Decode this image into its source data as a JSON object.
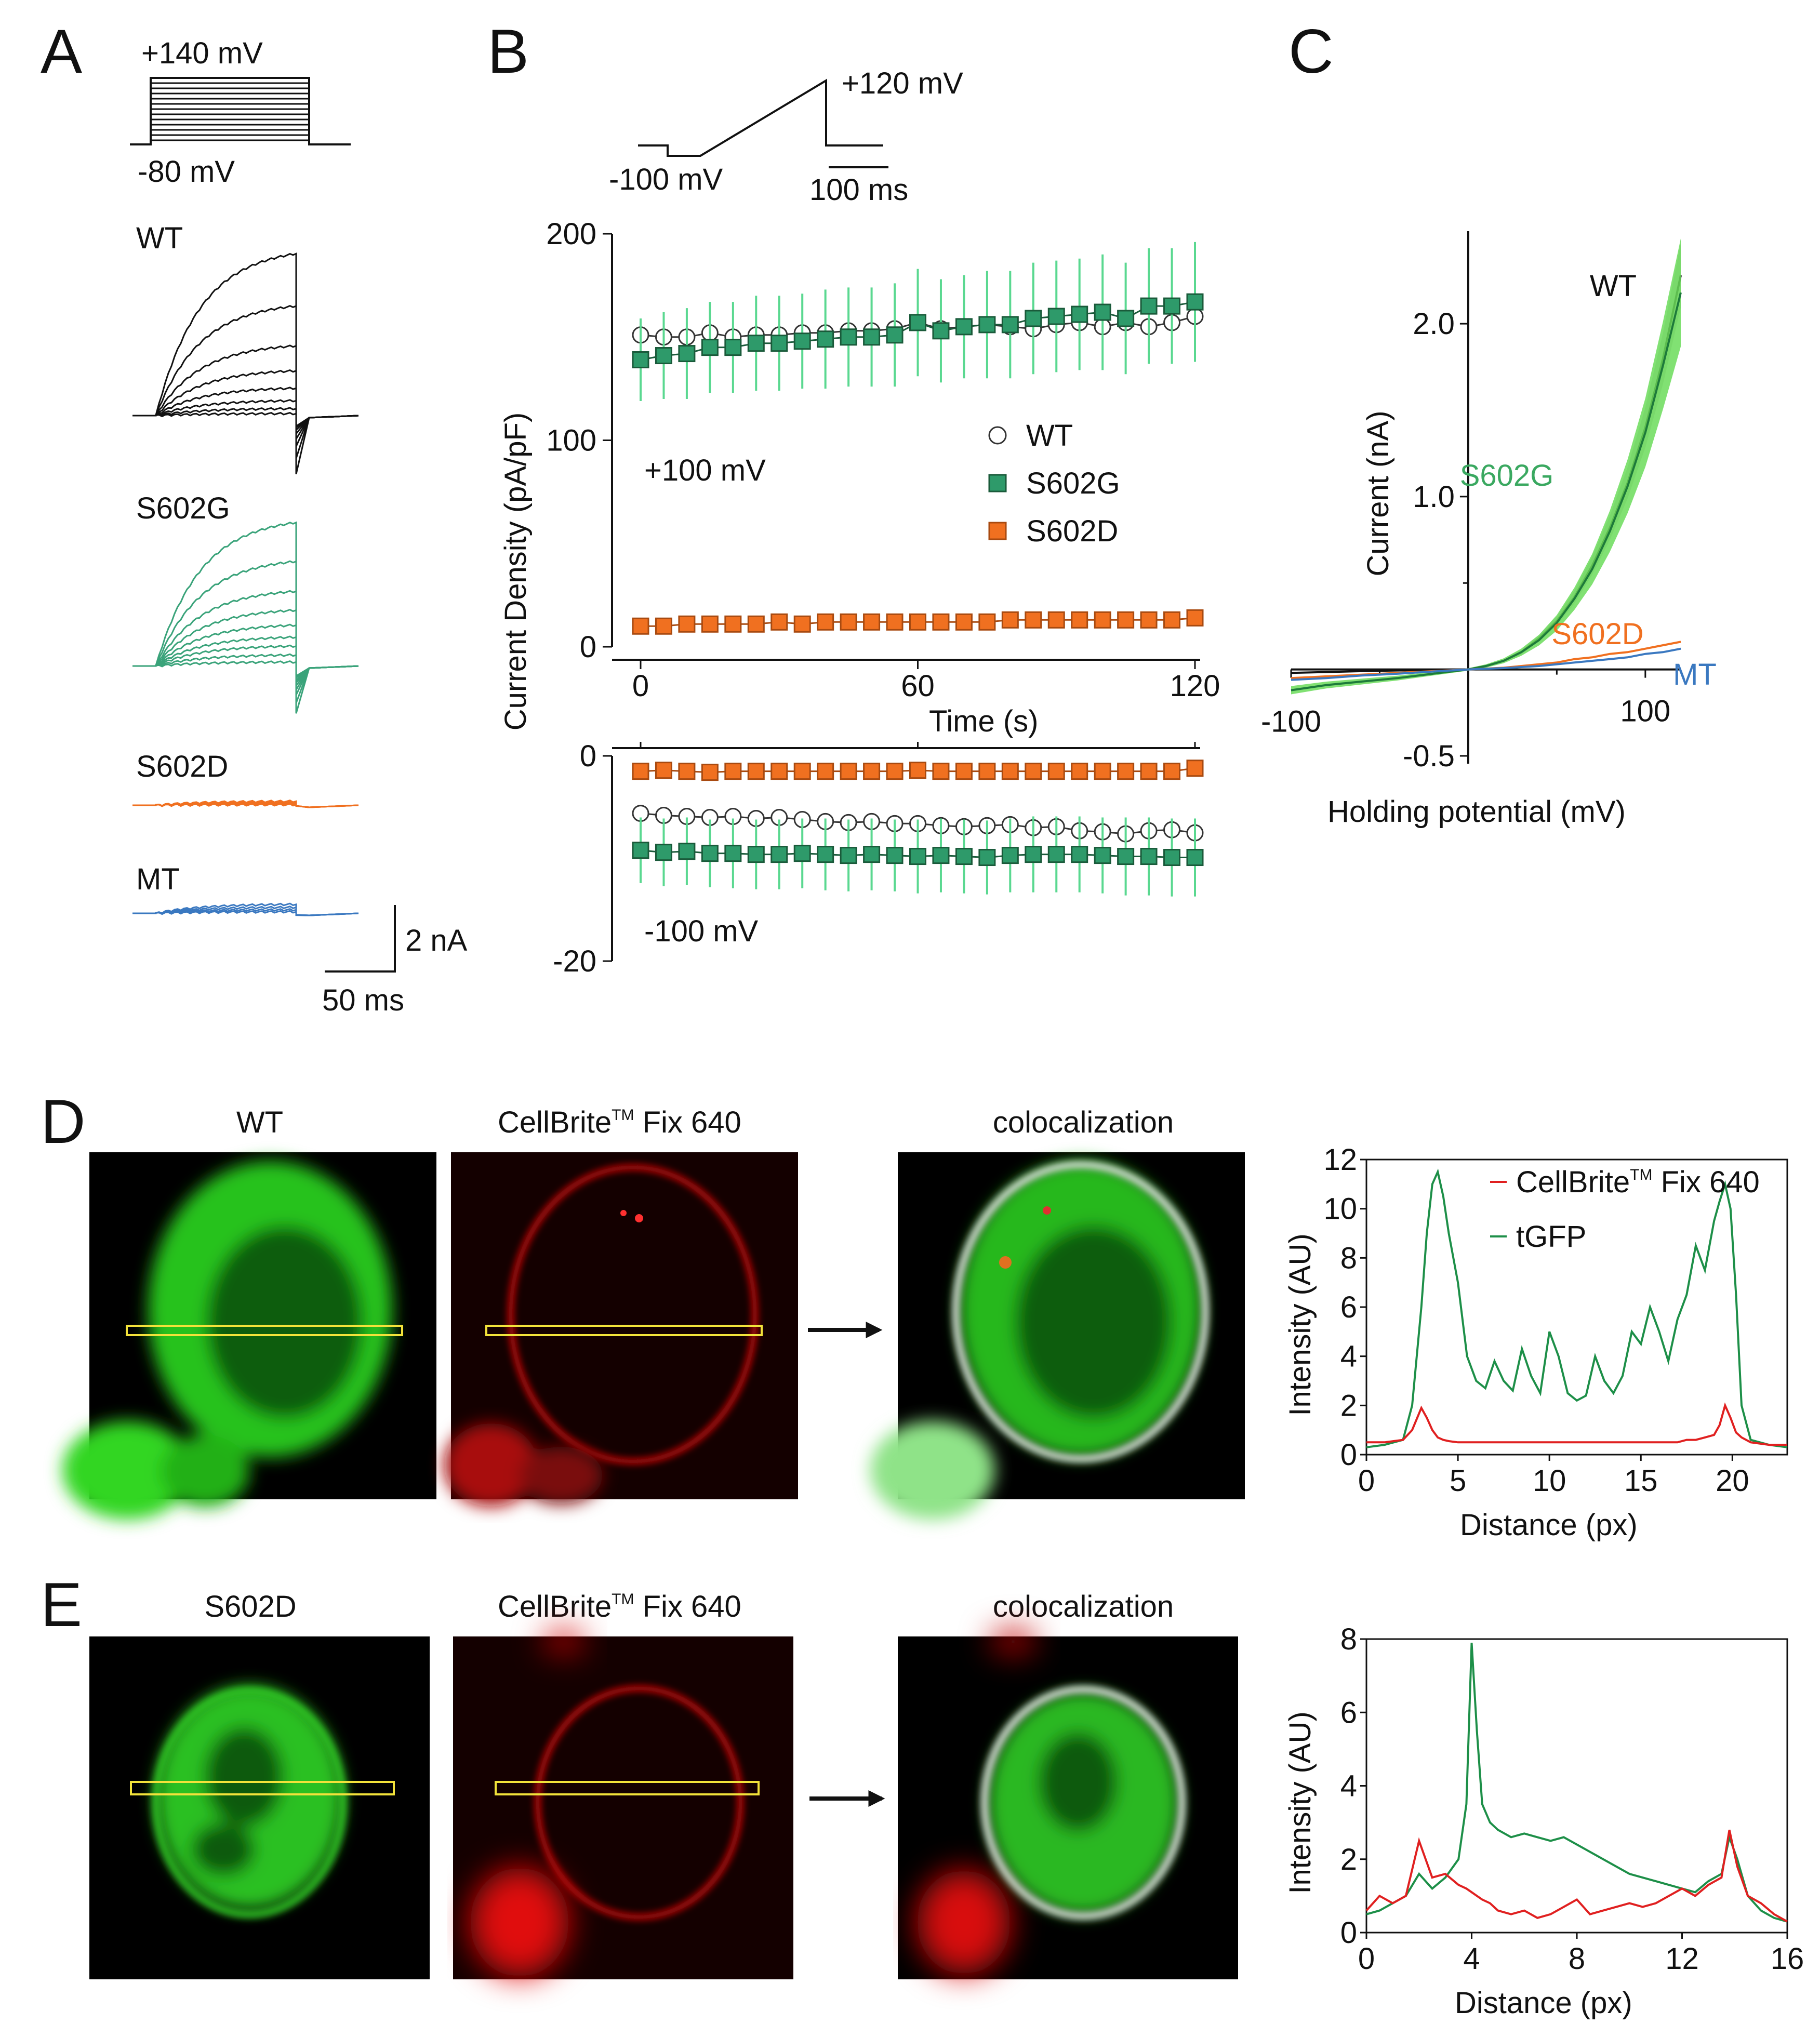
{
  "colors": {
    "WT": "#111111",
    "S602G": "#2e9a6a",
    "S602G_trace": "#3aa37a",
    "S602G_band": "#6bdc5a",
    "S602D": "#f07020",
    "MT": "#3a78c0",
    "red": "#e02020",
    "tgfp": "#1d8f48",
    "roi": "#f2e23a"
  },
  "panel_letters": [
    "A",
    "B",
    "C",
    "D",
    "E"
  ],
  "panelA": {
    "protocol_top": "+140 mV",
    "protocol_bottom": "-80 mV",
    "trace_labels": [
      "WT",
      "S602G",
      "S602D",
      "MT"
    ],
    "scale_current": "2 nA",
    "scale_time": "50 ms"
  },
  "chart_data": [
    {
      "id": "B",
      "type": "scatter",
      "protocol": {
        "hold": "-100 mV",
        "peak": "+120 mV",
        "scale": "100 ms"
      },
      "xlabel": "Time (s)",
      "ylabel": "Current Density  (pA/pF)",
      "upper": {
        "annotation": "+100 mV",
        "ylim": [
          0,
          200
        ],
        "xlim": [
          0,
          120
        ],
        "yticks": [
          "0",
          "100",
          "200"
        ],
        "xticks": [
          "0",
          "60",
          "120"
        ],
        "x": [
          0,
          5,
          10,
          15,
          20,
          25,
          30,
          35,
          40,
          45,
          50,
          55,
          60,
          65,
          70,
          75,
          80,
          85,
          90,
          95,
          100,
          105,
          110,
          115,
          120
        ],
        "series": [
          {
            "name": "WT",
            "marker": "circle",
            "values": [
              151,
              150,
              150,
              152,
              150,
              151,
              151,
              152,
              152,
              153,
              153,
              154,
              157,
              154,
              155,
              156,
              155,
              154,
              156,
              157,
              155,
              157,
              155,
              157,
              160
            ],
            "err": [
              0,
              0,
              0,
              0,
              0,
              0,
              0,
              0,
              0,
              0,
              0,
              0,
              0,
              0,
              0,
              0,
              0,
              0,
              0,
              0,
              0,
              0,
              0,
              0,
              0
            ]
          },
          {
            "name": "S602G",
            "marker": "square",
            "values": [
              139,
              141,
              142,
              145,
              145,
              147,
              147,
              148,
              149,
              150,
              150,
              151,
              157,
              153,
              155,
              156,
              156,
              159,
              160,
              161,
              162,
              159,
              165,
              165,
              167
            ],
            "err": [
              20,
              21,
              22,
              22,
              22,
              23,
              23,
              23,
              24,
              24,
              24,
              25,
              26,
              25,
              25,
              26,
              26,
              27,
              27,
              27,
              28,
              27,
              28,
              28,
              29
            ]
          },
          {
            "name": "S602D",
            "marker": "square",
            "values": [
              10,
              10,
              11,
              11,
              11,
              11,
              12,
              11,
              12,
              12,
              12,
              12,
              12,
              12,
              12,
              12,
              13,
              13,
              13,
              13,
              13,
              13,
              13,
              13,
              14
            ],
            "err": [
              0,
              0,
              0,
              0,
              0,
              0,
              0,
              0,
              0,
              0,
              0,
              0,
              0,
              0,
              0,
              0,
              0,
              0,
              0,
              0,
              0,
              0,
              0,
              0,
              0
            ]
          }
        ]
      },
      "lower": {
        "annotation": "-100 mV",
        "ylim": [
          -20,
          0
        ],
        "yticks": [
          "0",
          "-20"
        ],
        "x": [
          0,
          5,
          10,
          15,
          20,
          25,
          30,
          35,
          40,
          45,
          50,
          55,
          60,
          65,
          70,
          75,
          80,
          85,
          90,
          95,
          100,
          105,
          110,
          115,
          120
        ],
        "series": [
          {
            "name": "WT",
            "marker": "circle",
            "values": [
              -5.6,
              -5.8,
              -5.9,
              -6.0,
              -5.9,
              -6.1,
              -6.0,
              -6.2,
              -6.4,
              -6.5,
              -6.4,
              -6.6,
              -6.6,
              -6.8,
              -6.9,
              -6.8,
              -6.7,
              -7.0,
              -6.9,
              -7.3,
              -7.4,
              -7.6,
              -7.3,
              -7.2,
              -7.5
            ],
            "err": [
              0.8,
              0.8,
              0.8,
              0.8,
              0.8,
              0.8,
              0.8,
              0.8,
              0.8,
              0.8,
              0.8,
              0.8,
              0.8,
              0.8,
              0.8,
              0.8,
              0.8,
              0.8,
              0.8,
              0.8,
              0.8,
              0.8,
              0.8,
              0.8,
              0.8
            ]
          },
          {
            "name": "S602G",
            "marker": "square",
            "values": [
              -9.2,
              -9.4,
              -9.3,
              -9.5,
              -9.5,
              -9.6,
              -9.6,
              -9.5,
              -9.6,
              -9.7,
              -9.6,
              -9.7,
              -9.8,
              -9.7,
              -9.8,
              -9.9,
              -9.7,
              -9.6,
              -9.6,
              -9.6,
              -9.7,
              -9.8,
              -9.8,
              -9.9,
              -9.9
            ],
            "err": [
              3.2,
              3.3,
              3.3,
              3.3,
              3.4,
              3.4,
              3.4,
              3.4,
              3.5,
              3.5,
              3.5,
              3.5,
              3.6,
              3.6,
              3.6,
              3.6,
              3.6,
              3.7,
              3.7,
              3.7,
              3.7,
              3.8,
              3.8,
              3.8,
              3.8
            ]
          },
          {
            "name": "S602D",
            "marker": "square",
            "values": [
              -1.5,
              -1.4,
              -1.5,
              -1.6,
              -1.5,
              -1.5,
              -1.5,
              -1.5,
              -1.5,
              -1.5,
              -1.5,
              -1.5,
              -1.4,
              -1.5,
              -1.5,
              -1.5,
              -1.5,
              -1.5,
              -1.5,
              -1.5,
              -1.5,
              -1.5,
              -1.5,
              -1.5,
              -1.2
            ],
            "err": [
              0,
              0,
              0,
              0,
              0,
              0,
              0,
              0,
              0,
              0,
              0,
              0,
              0,
              0,
              0,
              0,
              0,
              0,
              0,
              0,
              0,
              0,
              0,
              0,
              0
            ]
          }
        ]
      },
      "legend": [
        "WT",
        "S602G",
        "S602D"
      ]
    },
    {
      "id": "C",
      "type": "line",
      "xlabel": "Holding potential (mV)",
      "ylabel": "Current (nA)",
      "xlim": [
        -100,
        120
      ],
      "ylim": [
        -0.5,
        2.4
      ],
      "xticks": [
        "-100",
        "100"
      ],
      "yticks": [
        "2.0",
        "1.0",
        "-0.5"
      ],
      "x": [
        -100,
        -80,
        -60,
        -40,
        -20,
        0,
        10,
        20,
        30,
        40,
        50,
        60,
        70,
        80,
        90,
        100,
        110,
        120
      ],
      "series": [
        {
          "name": "WT",
          "values": [
            -0.02,
            -0.015,
            -0.01,
            -0.006,
            -0.003,
            0,
            0.02,
            0.05,
            0.1,
            0.18,
            0.28,
            0.42,
            0.6,
            0.82,
            1.08,
            1.4,
            1.8,
            2.28
          ],
          "band": 0.08
        },
        {
          "name": "S602G",
          "values": [
            -0.12,
            -0.09,
            -0.07,
            -0.05,
            -0.025,
            0,
            0.02,
            0.05,
            0.1,
            0.17,
            0.27,
            0.41,
            0.58,
            0.8,
            1.06,
            1.37,
            1.76,
            2.18
          ],
          "band": 0.14
        },
        {
          "name": "S602D",
          "values": [
            -0.05,
            -0.04,
            -0.03,
            -0.02,
            -0.01,
            0,
            0.005,
            0.01,
            0.02,
            0.03,
            0.04,
            0.06,
            0.07,
            0.09,
            0.1,
            0.12,
            0.14,
            0.16
          ],
          "band": 0.02
        },
        {
          "name": "MT",
          "values": [
            -0.06,
            -0.05,
            -0.035,
            -0.025,
            -0.012,
            0,
            0.004,
            0.008,
            0.014,
            0.02,
            0.03,
            0.04,
            0.05,
            0.06,
            0.07,
            0.09,
            0.1,
            0.12
          ],
          "band": 0.03
        }
      ]
    },
    {
      "id": "D-profile",
      "type": "line",
      "xlabel": "Distance (px)",
      "ylabel": "Intensity (AU)",
      "xlim": [
        0,
        23
      ],
      "ylim": [
        0,
        12
      ],
      "xticks": [
        "0",
        "5",
        "10",
        "15",
        "20"
      ],
      "yticks": [
        "0",
        "2",
        "4",
        "6",
        "8",
        "10",
        "12"
      ],
      "x": [
        0,
        1,
        2,
        2.5,
        3,
        3.3,
        3.6,
        3.9,
        4.2,
        4.5,
        5,
        5.5,
        6,
        6.5,
        7,
        7.5,
        8,
        8.5,
        9,
        9.5,
        10,
        10.5,
        11,
        11.5,
        12,
        12.5,
        13,
        13.5,
        14,
        14.5,
        15,
        15.5,
        16,
        16.5,
        17,
        17.5,
        18,
        18.5,
        19,
        19.3,
        19.6,
        19.9,
        20.2,
        20.5,
        21,
        22,
        23
      ],
      "series": [
        {
          "name": "tGFP",
          "values": [
            0.3,
            0.4,
            0.6,
            2.0,
            6.0,
            9.0,
            11.0,
            11.5,
            10.5,
            9.0,
            7.0,
            4.0,
            3.0,
            2.7,
            3.8,
            3.0,
            2.6,
            4.3,
            3.2,
            2.5,
            5.0,
            4.0,
            2.5,
            2.2,
            2.4,
            4.0,
            3.0,
            2.5,
            3.2,
            5.0,
            4.5,
            6.0,
            5.0,
            3.8,
            5.5,
            6.5,
            8.5,
            7.5,
            9.5,
            10.3,
            11.0,
            10.0,
            6.5,
            2.0,
            0.6,
            0.4,
            0.3
          ]
        },
        {
          "name": "CellBrite™ Fix 640",
          "values": [
            0.5,
            0.5,
            0.6,
            1.0,
            1.9,
            1.5,
            1.0,
            0.7,
            0.6,
            0.55,
            0.5,
            0.5,
            0.5,
            0.5,
            0.5,
            0.5,
            0.5,
            0.5,
            0.5,
            0.5,
            0.5,
            0.5,
            0.5,
            0.5,
            0.5,
            0.5,
            0.5,
            0.5,
            0.5,
            0.5,
            0.5,
            0.5,
            0.5,
            0.5,
            0.5,
            0.6,
            0.6,
            0.7,
            0.8,
            1.2,
            2.0,
            1.5,
            0.9,
            0.7,
            0.5,
            0.4,
            0.4
          ]
        }
      ],
      "legend": [
        "CellBrite™ Fix 640",
        "tGFP"
      ]
    },
    {
      "id": "E-profile",
      "type": "line",
      "xlabel": "Distance (px)",
      "ylabel": "Intensity (AU)",
      "xlim": [
        0,
        16
      ],
      "ylim": [
        0,
        8
      ],
      "xticks": [
        "0",
        "4",
        "8",
        "12",
        "16"
      ],
      "yticks": [
        "0",
        "2",
        "4",
        "6",
        "8"
      ],
      "x": [
        0,
        0.5,
        1,
        1.5,
        2,
        2.5,
        3,
        3.5,
        3.8,
        4.0,
        4.2,
        4.4,
        4.7,
        5,
        5.5,
        6,
        6.5,
        7,
        7.5,
        8,
        8.5,
        9,
        9.5,
        10,
        10.5,
        11,
        11.5,
        12,
        12.5,
        13,
        13.5,
        13.8,
        14.1,
        14.5,
        15,
        15.5,
        16
      ],
      "series": [
        {
          "name": "tGFP",
          "values": [
            0.5,
            0.6,
            0.8,
            1.0,
            1.6,
            1.2,
            1.5,
            2.0,
            3.5,
            7.9,
            5.5,
            3.5,
            3.0,
            2.8,
            2.6,
            2.7,
            2.6,
            2.5,
            2.6,
            2.4,
            2.2,
            2.0,
            1.8,
            1.6,
            1.5,
            1.4,
            1.3,
            1.2,
            1.1,
            1.4,
            1.6,
            2.6,
            2.0,
            1.0,
            0.6,
            0.4,
            0.3
          ]
        },
        {
          "name": "CellBrite™ Fix 640",
          "values": [
            0.6,
            1.0,
            0.8,
            1.0,
            2.5,
            1.5,
            1.6,
            1.3,
            1.2,
            1.1,
            1.0,
            0.9,
            0.8,
            0.6,
            0.5,
            0.6,
            0.4,
            0.5,
            0.7,
            0.9,
            0.5,
            0.6,
            0.7,
            0.8,
            0.7,
            0.8,
            1.0,
            1.2,
            1.0,
            1.3,
            1.5,
            2.8,
            1.8,
            1.0,
            0.8,
            0.5,
            0.3
          ]
        }
      ]
    }
  ],
  "panelD": {
    "titles": [
      "WT",
      "CellBrite",
      "colocalization"
    ],
    "tm": "TM",
    "fix": " Fix 640",
    "legend_name": "CellBrite",
    "legend_fix": " Fix 640",
    "legend_tgfp": "tGFP"
  },
  "panelE": {
    "titles": [
      "S602D",
      "CellBrite",
      "colocalization"
    ],
    "tm": "TM",
    "fix": " Fix 640"
  }
}
